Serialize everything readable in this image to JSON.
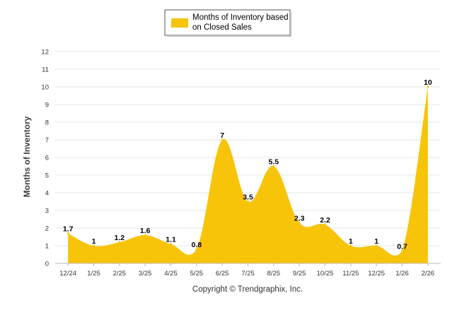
{
  "chart_data": {
    "type": "area",
    "title": "",
    "ylabel": "Months of Inventory",
    "xlabel": "",
    "legend": {
      "position": "top-center",
      "entries": [
        "Months of Inventory based on Closed Sales"
      ]
    },
    "series": [
      {
        "name": "Months of Inventory based on Closed Sales",
        "color": "#f7c40a",
        "values": [
          1.7,
          1,
          1.2,
          1.6,
          1.1,
          0.8,
          7,
          3.5,
          5.5,
          2.3,
          2.2,
          1,
          1,
          0.7,
          10
        ],
        "labels": [
          "1.7",
          "1",
          "1.2",
          "1.6",
          "1.1",
          "0.8",
          "7",
          "3.5",
          "5.5",
          "2.3",
          "2.2",
          "1",
          "1",
          "0.7",
          "10"
        ]
      }
    ],
    "categories": [
      "12/24",
      "1/25",
      "2/25",
      "3/25",
      "4/25",
      "5/25",
      "6/25",
      "7/25",
      "8/25",
      "9/25",
      "10/25",
      "11/25",
      "12/25",
      "1/26",
      "2/26"
    ],
    "ylim": [
      0,
      12
    ],
    "yticks": [
      "0",
      "1",
      "2",
      "3",
      "4",
      "5",
      "6",
      "7",
      "8",
      "9",
      "10",
      "11",
      "12"
    ],
    "grid": true
  },
  "footer": {
    "copyright": "Copyright © Trendgraphix, Inc."
  }
}
